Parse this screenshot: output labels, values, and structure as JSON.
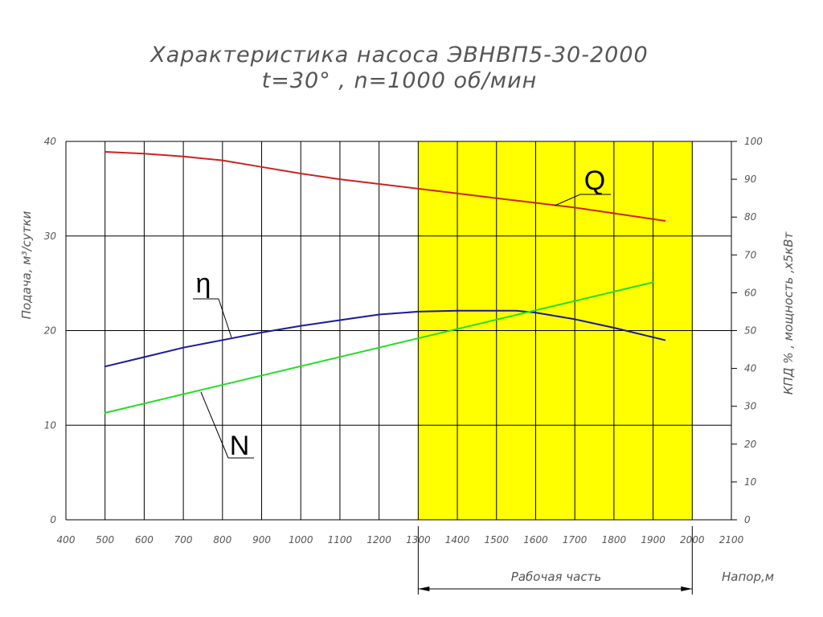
{
  "chart_data": {
    "type": "line",
    "title": "Характеристика насоса ЭВНВП5-30-2000",
    "subtitle": "t=30° , n=1000 об/мин",
    "xlabel": "Напор,м",
    "ylabel_left": "Подача, м³/сутки",
    "ylabel_right": "КПД % , мощность ,х5кВт",
    "xlim": [
      400,
      2100
    ],
    "ylim_left": [
      0,
      40
    ],
    "ylim_right": [
      0,
      100
    ],
    "x_ticks": [
      400,
      500,
      600,
      700,
      800,
      900,
      1000,
      1100,
      1200,
      1300,
      1400,
      1500,
      1600,
      1700,
      1800,
      1900,
      2000,
      2100
    ],
    "y_ticks_left": [
      0,
      10,
      20,
      30,
      40
    ],
    "y_ticks_right": [
      0,
      10,
      20,
      30,
      40,
      50,
      60,
      70,
      80,
      90,
      100
    ],
    "grid": true,
    "working_zone": {
      "x": [
        1300,
        2000
      ],
      "label": "Рабочая часть",
      "color": "#ffff00"
    },
    "series": [
      {
        "name": "Q",
        "axis": "left",
        "color": "#cc2222",
        "x": [
          500,
          600,
          700,
          800,
          900,
          1000,
          1100,
          1200,
          1300,
          1400,
          1500,
          1600,
          1700,
          1800,
          1930
        ],
        "y": [
          38.9,
          38.7,
          38.4,
          38.0,
          37.3,
          36.6,
          36.0,
          35.5,
          35.0,
          34.5,
          34.0,
          33.5,
          33.0,
          32.4,
          31.6
        ]
      },
      {
        "name": "η",
        "axis": "left",
        "color": "#1a1aa0",
        "x": [
          500,
          600,
          700,
          800,
          900,
          1000,
          1100,
          1200,
          1300,
          1400,
          1500,
          1550,
          1600,
          1700,
          1800,
          1930
        ],
        "y": [
          16.2,
          17.2,
          18.2,
          19.0,
          19.8,
          20.5,
          21.1,
          21.7,
          22.0,
          22.1,
          22.1,
          22.1,
          21.9,
          21.2,
          20.3,
          19.0
        ]
      },
      {
        "name": "N",
        "axis": "left",
        "color": "#22dd22",
        "x": [
          500,
          1900
        ],
        "y": [
          11.3,
          25.1
        ]
      }
    ]
  }
}
